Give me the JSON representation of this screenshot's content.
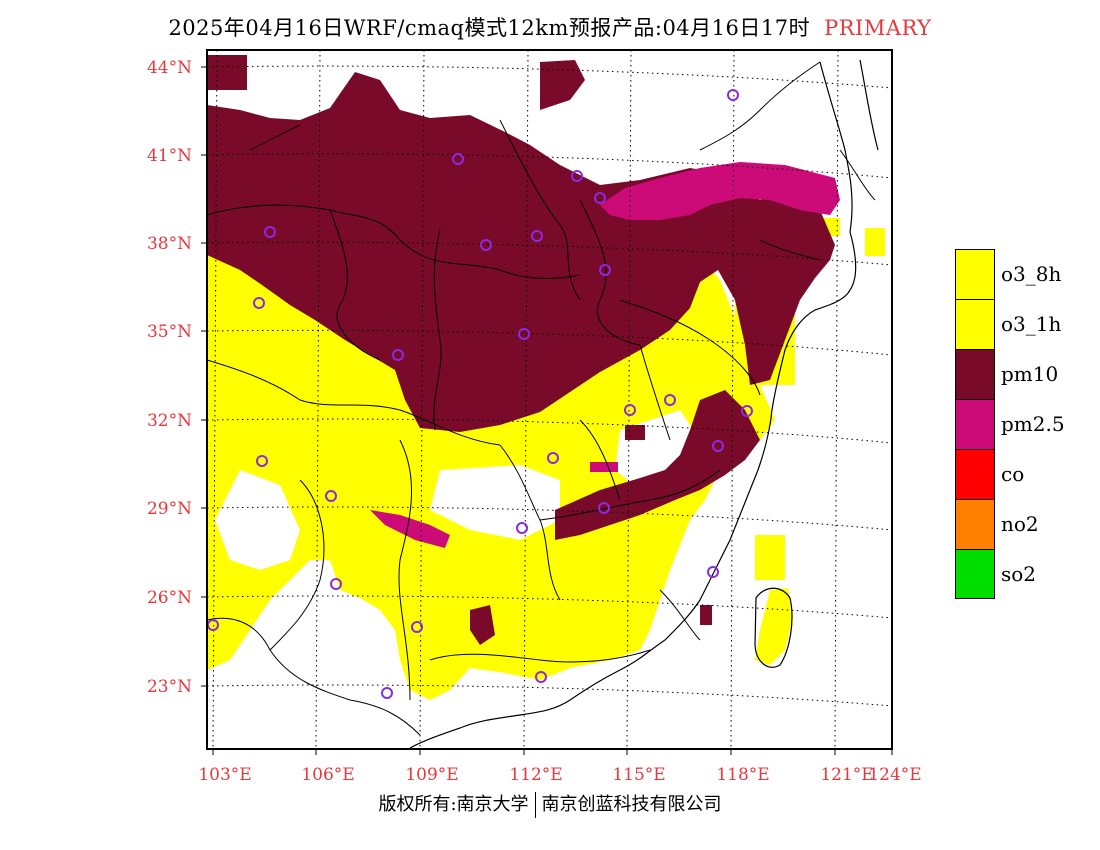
{
  "title": {
    "main": "2025年04月16日WRF/cmaq模式12km预报产品:04月16日17时",
    "tag": "PRIMARY"
  },
  "axes": {
    "lat_labels": [
      "23°N",
      "26°N",
      "29°N",
      "32°N",
      "35°N",
      "38°N",
      "41°N",
      "44°N"
    ],
    "lon_labels": [
      "103°E",
      "106°E",
      "109°E",
      "112°E",
      "115°E",
      "118°E",
      "121°E",
      "124°E"
    ]
  },
  "legend": [
    {
      "label": "o3_8h",
      "color": "#ffff00"
    },
    {
      "label": "o3_1h",
      "color": "#ffff00"
    },
    {
      "label": "pm10",
      "color": "#7a0a2a"
    },
    {
      "label": "pm2.5",
      "color": "#cc0a78"
    },
    {
      "label": "co",
      "color": "#ff0000"
    },
    {
      "label": "no2",
      "color": "#ff8000"
    },
    {
      "label": "so2",
      "color": "#00dd00"
    }
  ],
  "footer": {
    "left": "版权所有:南京大学",
    "right": "南京创蓝科技有限公司"
  },
  "colors": {
    "axis_label": "#e8383c",
    "tag": "#e8383c",
    "station_marker": "#8a2be2"
  }
}
